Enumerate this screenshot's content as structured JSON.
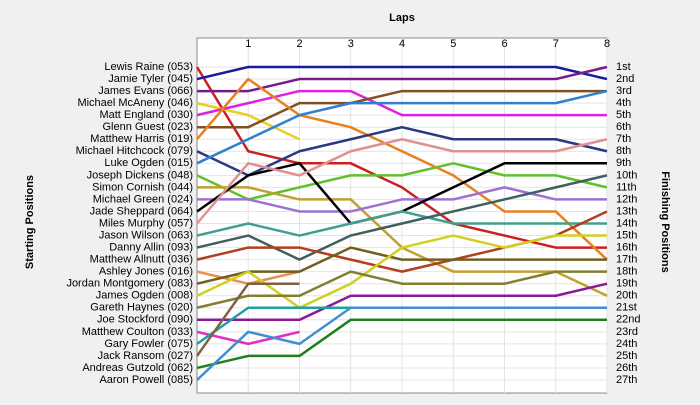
{
  "chart_data": {
    "type": "lap",
    "title": "Laps",
    "y_label": "Starting Positions",
    "y2_label": "Finishing Positions",
    "x": [
      0,
      1,
      2,
      3,
      4,
      5,
      6,
      7,
      8
    ],
    "xlim": [
      0,
      8
    ],
    "xticks": [
      1,
      2,
      3,
      4,
      5,
      6,
      7,
      8
    ],
    "ylim": [
      1,
      27
    ],
    "grid": true,
    "finishing_positions": [
      "1st",
      "2nd",
      "3rd",
      "4th",
      "5th",
      "6th",
      "7th",
      "8th",
      "9th",
      "10th",
      "11th",
      "12th",
      "13th",
      "14th",
      "15th",
      "16th",
      "17th",
      "18th",
      "19th",
      "20th",
      "21st",
      "22nd",
      "23rd",
      "24th",
      "25th",
      "26th",
      "27th"
    ],
    "series": [
      {
        "name": "Lewis Raine (053)",
        "color": "#cc2020",
        "values": [
          1,
          8,
          9,
          9,
          11,
          14,
          15,
          16,
          16
        ]
      },
      {
        "name": "Jamie Tyler (045)",
        "color": "#1a1aa0",
        "values": [
          2,
          1,
          1,
          1,
          1,
          1,
          1,
          1,
          2
        ]
      },
      {
        "name": "James Evans (066)",
        "color": "#7a1a8a",
        "values": [
          3,
          3,
          2,
          2,
          2,
          2,
          2,
          2,
          1
        ]
      },
      {
        "name": "Michael McAneny (046)",
        "color": "#e8d020",
        "values": [
          4,
          5,
          7,
          null,
          null,
          null,
          null,
          null,
          null
        ]
      },
      {
        "name": "Matt England (030)",
        "color": "#e020e0",
        "values": [
          5,
          4,
          3,
          3,
          5,
          5,
          5,
          5,
          5
        ]
      },
      {
        "name": "Glenn Guest (023)",
        "color": "#805020",
        "values": [
          6,
          6,
          4,
          4,
          3,
          3,
          3,
          3,
          3
        ]
      },
      {
        "name": "Matthew Harris (019)",
        "color": "#e88020",
        "values": [
          7,
          2,
          5,
          6,
          8,
          10,
          13,
          13,
          17
        ]
      },
      {
        "name": "Michael Hitchcock (079)",
        "color": "#2a3a80",
        "values": [
          8,
          10,
          8,
          7,
          6,
          7,
          7,
          7,
          8
        ]
      },
      {
        "name": "Luke Ogden (015)",
        "color": "#3080d0",
        "values": [
          9,
          7,
          5,
          4,
          4,
          4,
          4,
          4,
          3
        ]
      },
      {
        "name": "Joseph Dickens (048)",
        "color": "#60c030",
        "values": [
          10,
          12,
          11,
          10,
          10,
          9,
          10,
          10,
          11
        ]
      },
      {
        "name": "Simon Cornish (044)",
        "color": "#c0a030",
        "values": [
          11,
          11,
          12,
          12,
          16,
          18,
          18,
          18,
          20
        ]
      },
      {
        "name": "Michael Green (024)",
        "color": "#a070d0",
        "values": [
          12,
          12,
          13,
          13,
          12,
          12,
          11,
          12,
          12
        ]
      },
      {
        "name": "Jade Sheppard (064)",
        "color": "#000000",
        "values": [
          13,
          10,
          9,
          14,
          13,
          11,
          9,
          9,
          9
        ]
      },
      {
        "name": "Miles Murphy (057)",
        "color": "#e09090",
        "values": [
          14,
          9,
          10,
          8,
          7,
          8,
          8,
          8,
          7
        ]
      },
      {
        "name": "Jason Wilson (063)",
        "color": "#40a090",
        "values": [
          15,
          14,
          15,
          14,
          13,
          14,
          14,
          14,
          14
        ]
      },
      {
        "name": "Danny Allin (093)",
        "color": "#406060",
        "values": [
          16,
          15,
          17,
          15,
          14,
          13,
          12,
          11,
          10
        ]
      },
      {
        "name": "Matthew Allnutt (036)",
        "color": "#b04020",
        "values": [
          17,
          16,
          16,
          17,
          18,
          17,
          16,
          15,
          13
        ]
      },
      {
        "name": "Ashley Jones (016)",
        "color": "#e89050",
        "values": [
          18,
          19,
          18,
          null,
          null,
          null,
          null,
          null,
          null
        ]
      },
      {
        "name": "Jordan Montgomery (083)",
        "color": "#706020",
        "values": [
          19,
          18,
          18,
          16,
          17,
          17,
          17,
          17,
          17
        ]
      },
      {
        "name": "James Ogden (008)",
        "color": "#d0d020",
        "values": [
          20,
          18,
          21,
          19,
          16,
          15,
          16,
          15,
          15
        ]
      },
      {
        "name": "Gareth Haynes (020)",
        "color": "#808030",
        "values": [
          21,
          20,
          20,
          18,
          19,
          19,
          19,
          18,
          18
        ]
      },
      {
        "name": "Joe Stockford (090)",
        "color": "#8a1a9a",
        "values": [
          22,
          22,
          22,
          20,
          20,
          20,
          20,
          20,
          19
        ]
      },
      {
        "name": "Matthew Coulton (033)",
        "color": "#e030c0",
        "values": [
          23,
          24,
          23,
          null,
          null,
          null,
          null,
          null,
          null
        ]
      },
      {
        "name": "Gary Fowler (075)",
        "color": "#20a0a0",
        "values": [
          24,
          21,
          21,
          21,
          21,
          21,
          21,
          21,
          21
        ]
      },
      {
        "name": "Jack Ransom (027)",
        "color": "#806040",
        "values": [
          25,
          19,
          19,
          null,
          null,
          null,
          null,
          null,
          null
        ]
      },
      {
        "name": "Andreas Gutzold (062)",
        "color": "#208020",
        "values": [
          26,
          25,
          25,
          22,
          22,
          22,
          22,
          22,
          22
        ]
      },
      {
        "name": "Aaron Powell (085)",
        "color": "#4090d0",
        "values": [
          27,
          23,
          24,
          21,
          21,
          21,
          21,
          21,
          21
        ]
      }
    ]
  }
}
